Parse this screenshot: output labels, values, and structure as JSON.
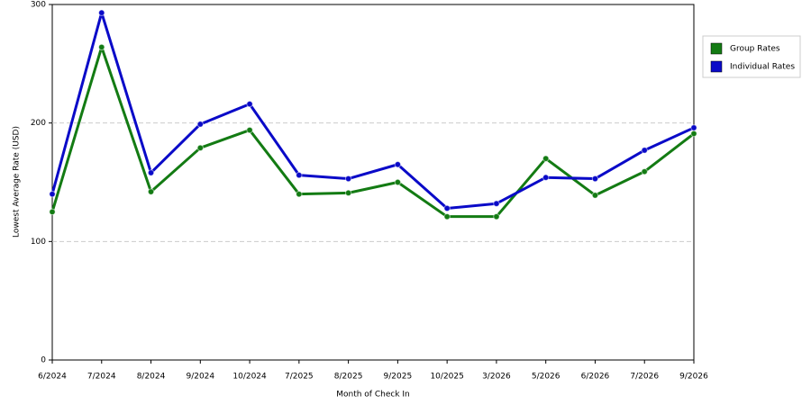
{
  "chart_data": {
    "type": "line",
    "x_label": "Month of Check In",
    "y_label": "Lowest Average Rate (USD)",
    "categories": [
      "6/2024",
      "7/2024",
      "8/2024",
      "9/2024",
      "10/2024",
      "7/2025",
      "8/2025",
      "9/2025",
      "10/2025",
      "3/2026",
      "5/2026",
      "6/2026",
      "7/2026",
      "9/2026"
    ],
    "series": [
      {
        "name": "Group Rates",
        "color": "#137b13",
        "values": [
          125,
          264,
          142,
          179,
          194,
          140,
          141,
          150,
          121,
          121,
          170,
          139,
          159,
          191
        ]
      },
      {
        "name": "Individual Rates",
        "color": "#0a0ac8",
        "values": [
          140,
          293,
          158,
          199,
          216,
          156,
          153,
          165,
          128,
          132,
          154,
          153,
          177,
          196
        ]
      }
    ],
    "ylim": [
      0,
      300
    ],
    "yticks": [
      0,
      100,
      200,
      300
    ],
    "grid": true,
    "legend": "top-right"
  }
}
